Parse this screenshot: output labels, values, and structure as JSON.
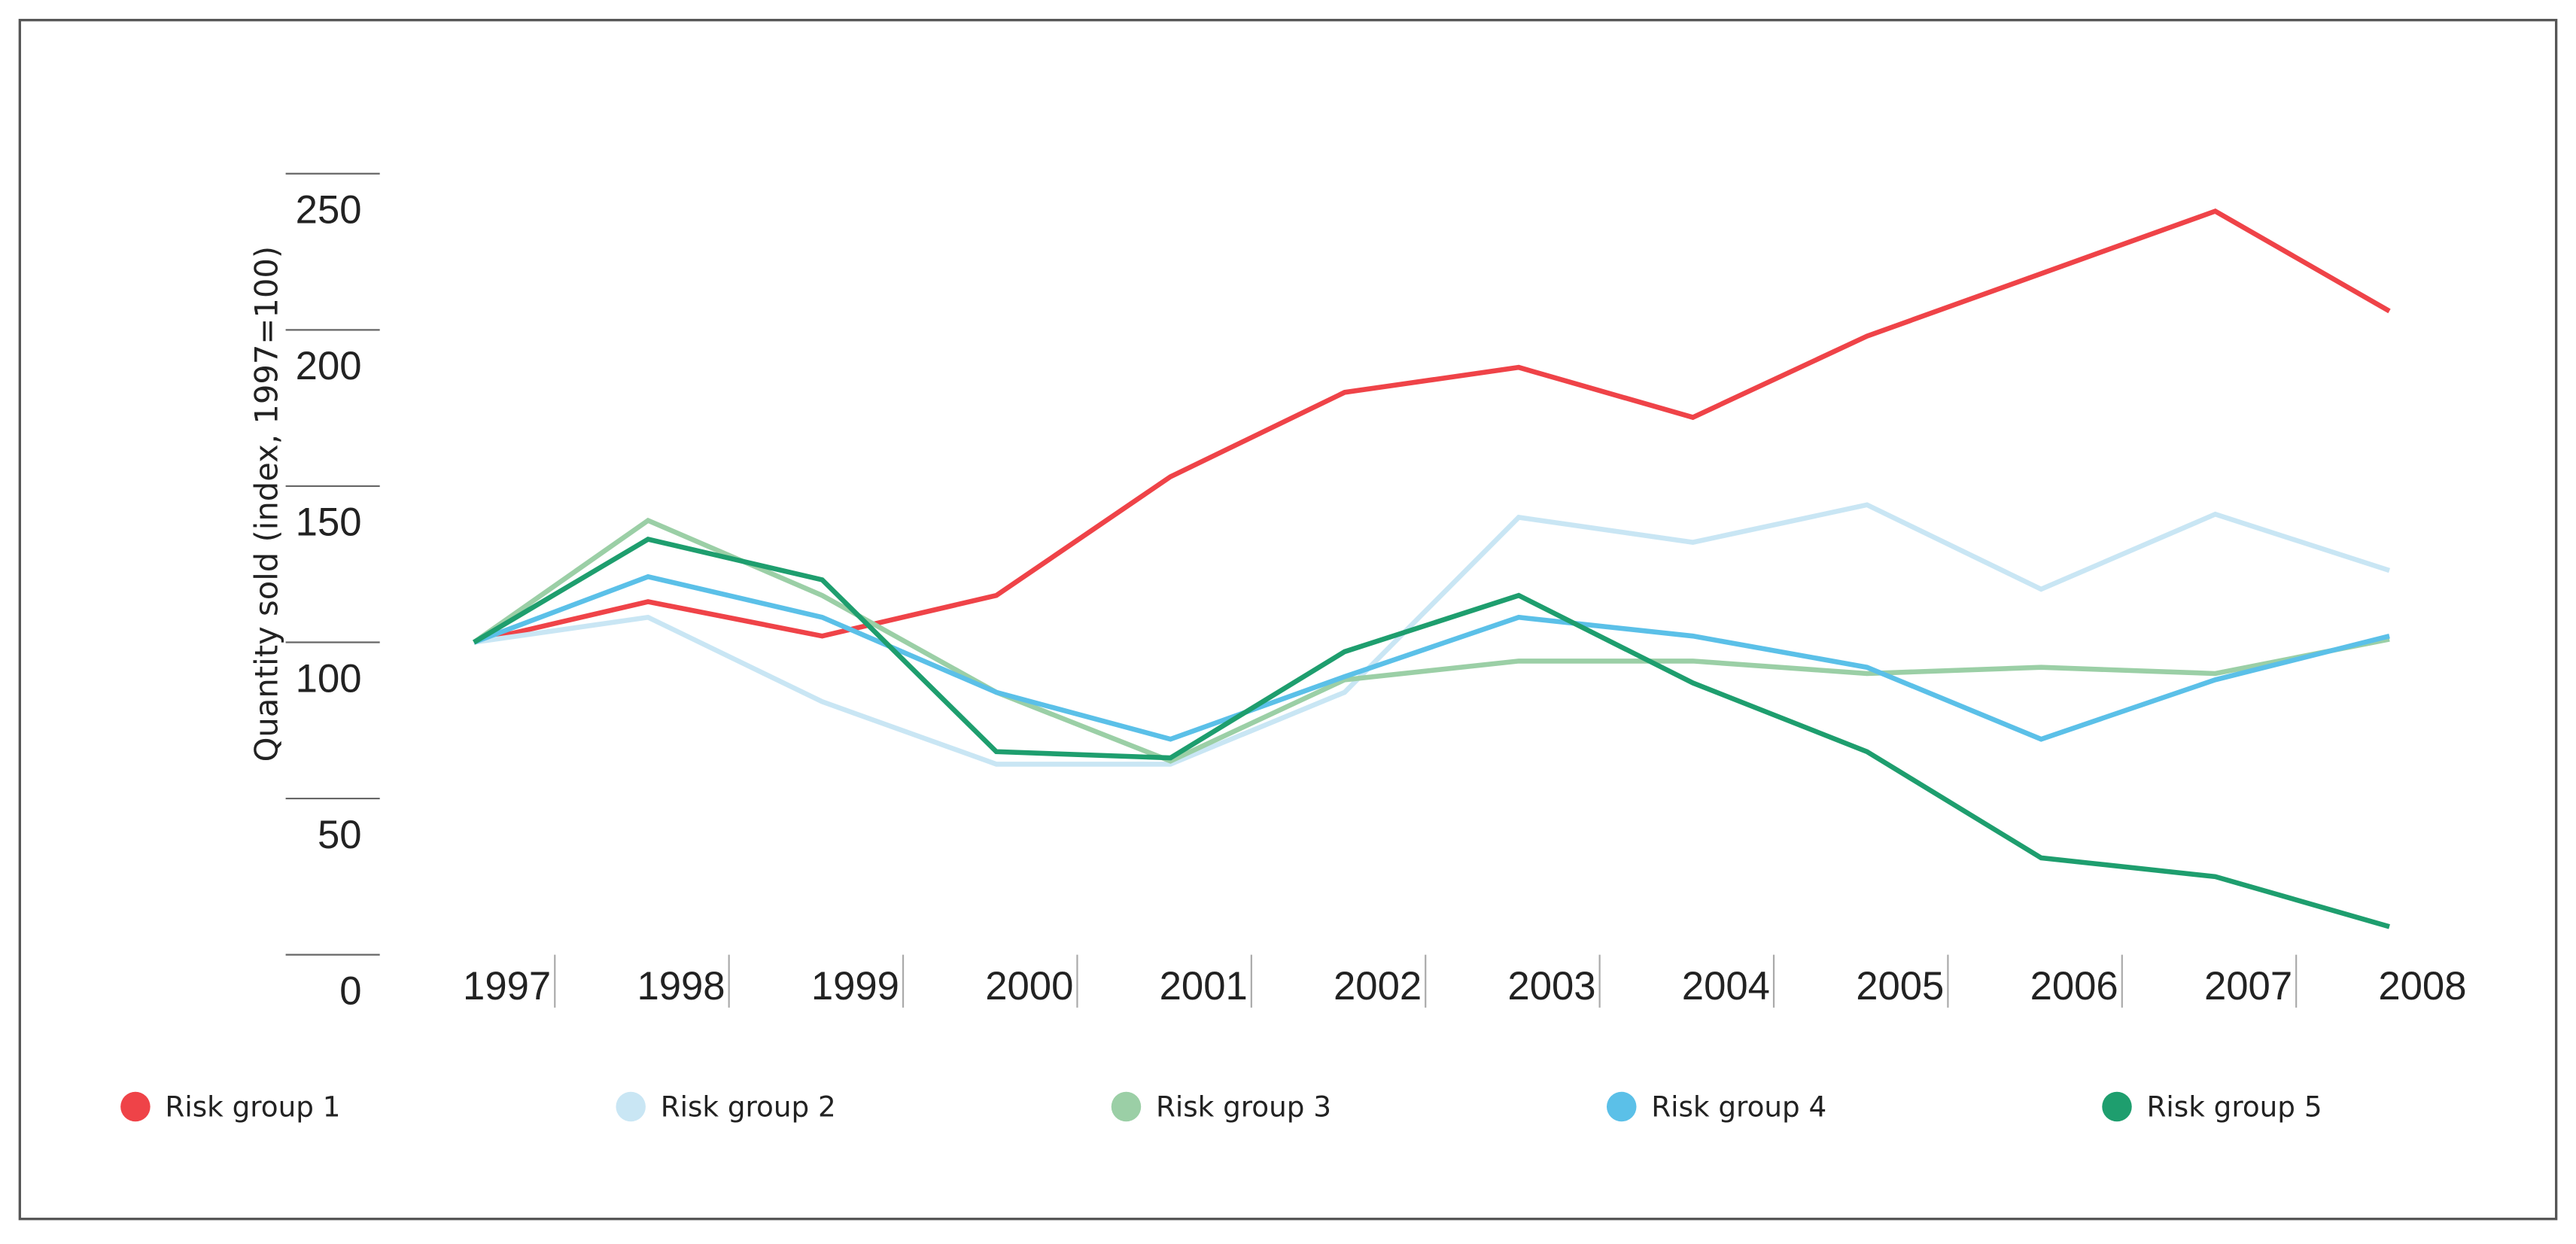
{
  "chart_data": {
    "type": "line",
    "title": "",
    "xlabel": "",
    "ylabel": "Quantity sold (index, 1997=100)",
    "ylim": [
      0,
      250
    ],
    "yticks": [
      0,
      50,
      100,
      150,
      200,
      250
    ],
    "grid": false,
    "legend_position": "bottom",
    "x": [
      "1997",
      "1998",
      "1999",
      "2000",
      "2001",
      "2002",
      "2003",
      "2004",
      "2005",
      "2006",
      "2007",
      "2008"
    ],
    "series": [
      {
        "name": "Risk group 1",
        "color": "#EF4348",
        "values": [
          100,
          113,
          102,
          115,
          153,
          180,
          188,
          172,
          198,
          218,
          238,
          206
        ]
      },
      {
        "name": "Risk group 2",
        "color": "#C9E6F4",
        "values": [
          100,
          108,
          81,
          61,
          61,
          84,
          140,
          132,
          144,
          117,
          141,
          123
        ]
      },
      {
        "name": "Risk group 3",
        "color": "#9BCFA6",
        "values": [
          100,
          139,
          115,
          84,
          62,
          88,
          94,
          94,
          90,
          92,
          90,
          101
        ]
      },
      {
        "name": "Risk group 4",
        "color": "#5BC0E8",
        "values": [
          100,
          121,
          108,
          84,
          69,
          89,
          108,
          102,
          92,
          69,
          88,
          102
        ]
      },
      {
        "name": "Risk group 5",
        "color": "#1E9E6E",
        "values": [
          100,
          133,
          120,
          65,
          63,
          97,
          115,
          87,
          65,
          31,
          25,
          9
        ]
      }
    ]
  }
}
